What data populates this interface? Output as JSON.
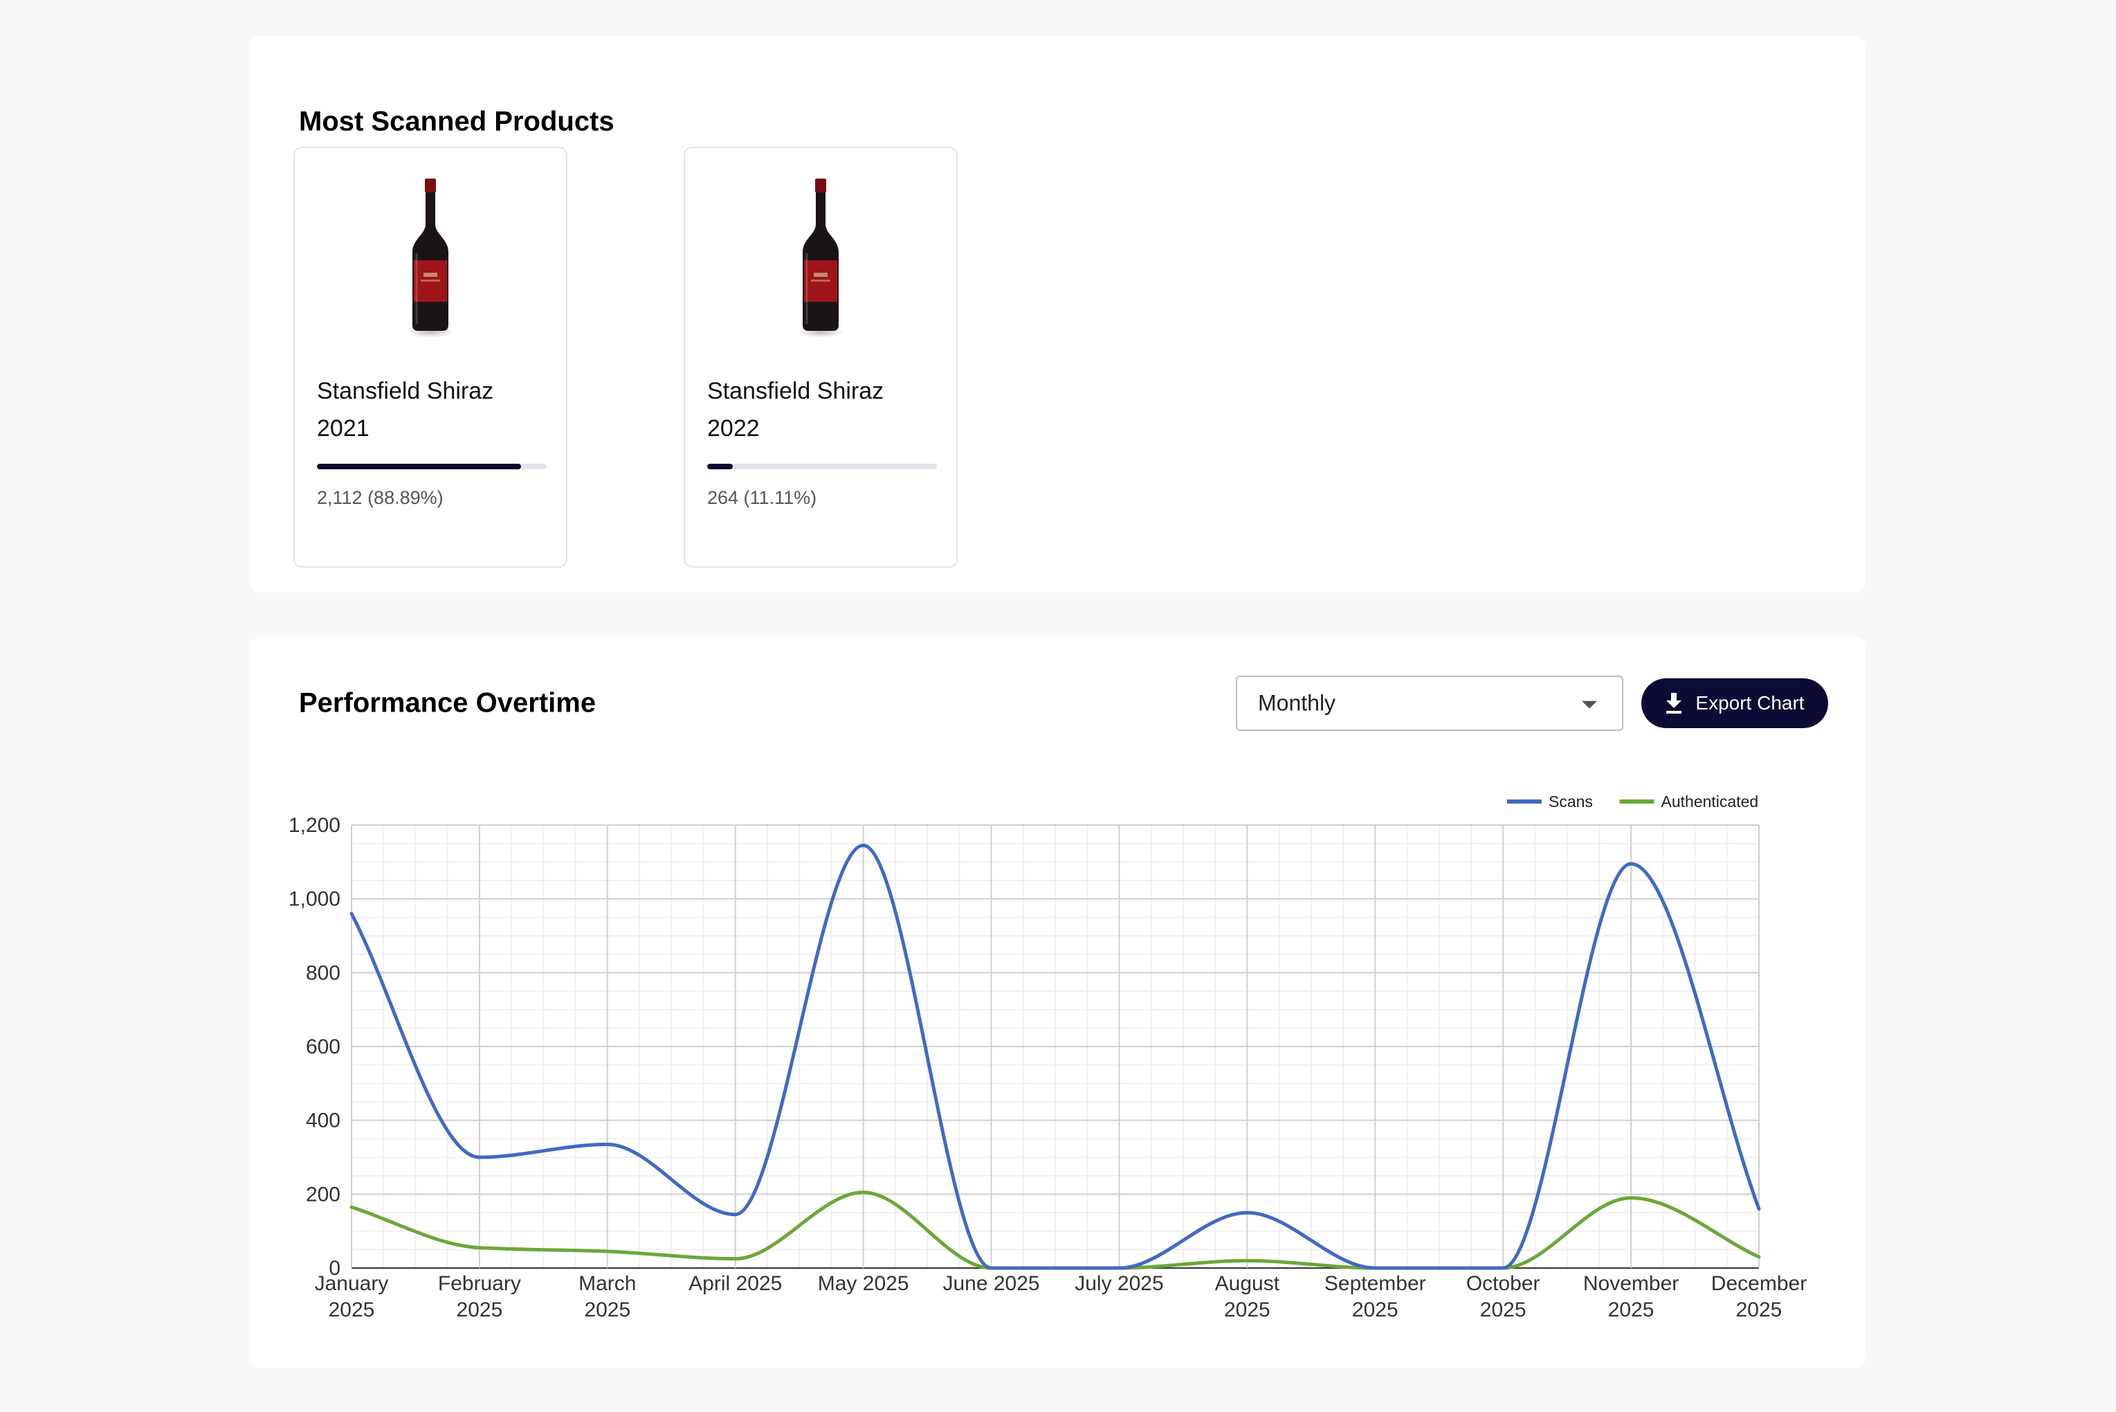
{
  "most_scanned": {
    "title": "Most Scanned Products",
    "products": [
      {
        "name_line1": "Stansfield Shiraz",
        "name_line2": "2021",
        "stat": "2,112 (88.89%)",
        "share": 0.8889
      },
      {
        "name_line1": "Stansfield Shiraz",
        "name_line2": "2022",
        "stat": "264 (11.11%)",
        "share": 0.1111
      }
    ]
  },
  "performance": {
    "title": "Performance Overtime",
    "period_select": {
      "value": "Monthly"
    },
    "export_label": "Export Chart"
  },
  "icons": {
    "dropdown": "chevron-down-icon",
    "export": "download-icon",
    "product": "wine-bottle-icon"
  },
  "colors": {
    "scans": "#4169c4",
    "authenticated": "#6aa839",
    "button_bg": "#0b0b35",
    "progress_fill": "#0c0c2e"
  },
  "chart_data": {
    "type": "line",
    "categories": [
      [
        "January",
        "2025"
      ],
      [
        "February",
        "2025"
      ],
      [
        "March",
        "2025"
      ],
      [
        "April 2025"
      ],
      [
        "May 2025"
      ],
      [
        "June 2025"
      ],
      [
        "July 2025"
      ],
      [
        "August",
        "2025"
      ],
      [
        "September",
        "2025"
      ],
      [
        "October",
        "2025"
      ],
      [
        "November",
        "2025"
      ],
      [
        "December",
        "2025"
      ]
    ],
    "series": [
      {
        "name": "Scans",
        "color": "#4169c4",
        "values": [
          960,
          300,
          335,
          145,
          1145,
          0,
          0,
          150,
          0,
          0,
          1095,
          160
        ]
      },
      {
        "name": "Authenticated",
        "color": "#6aa839",
        "values": [
          165,
          55,
          45,
          25,
          205,
          0,
          0,
          20,
          0,
          0,
          190,
          30
        ]
      }
    ],
    "ylim": [
      0,
      1200
    ],
    "yticks": [
      "0",
      "200",
      "400",
      "600",
      "800",
      "1,000",
      "1,200"
    ],
    "ytick_values": [
      0,
      200,
      400,
      600,
      800,
      1000,
      1200
    ],
    "grid": true,
    "legend": "top-right",
    "curve": "smooth"
  }
}
